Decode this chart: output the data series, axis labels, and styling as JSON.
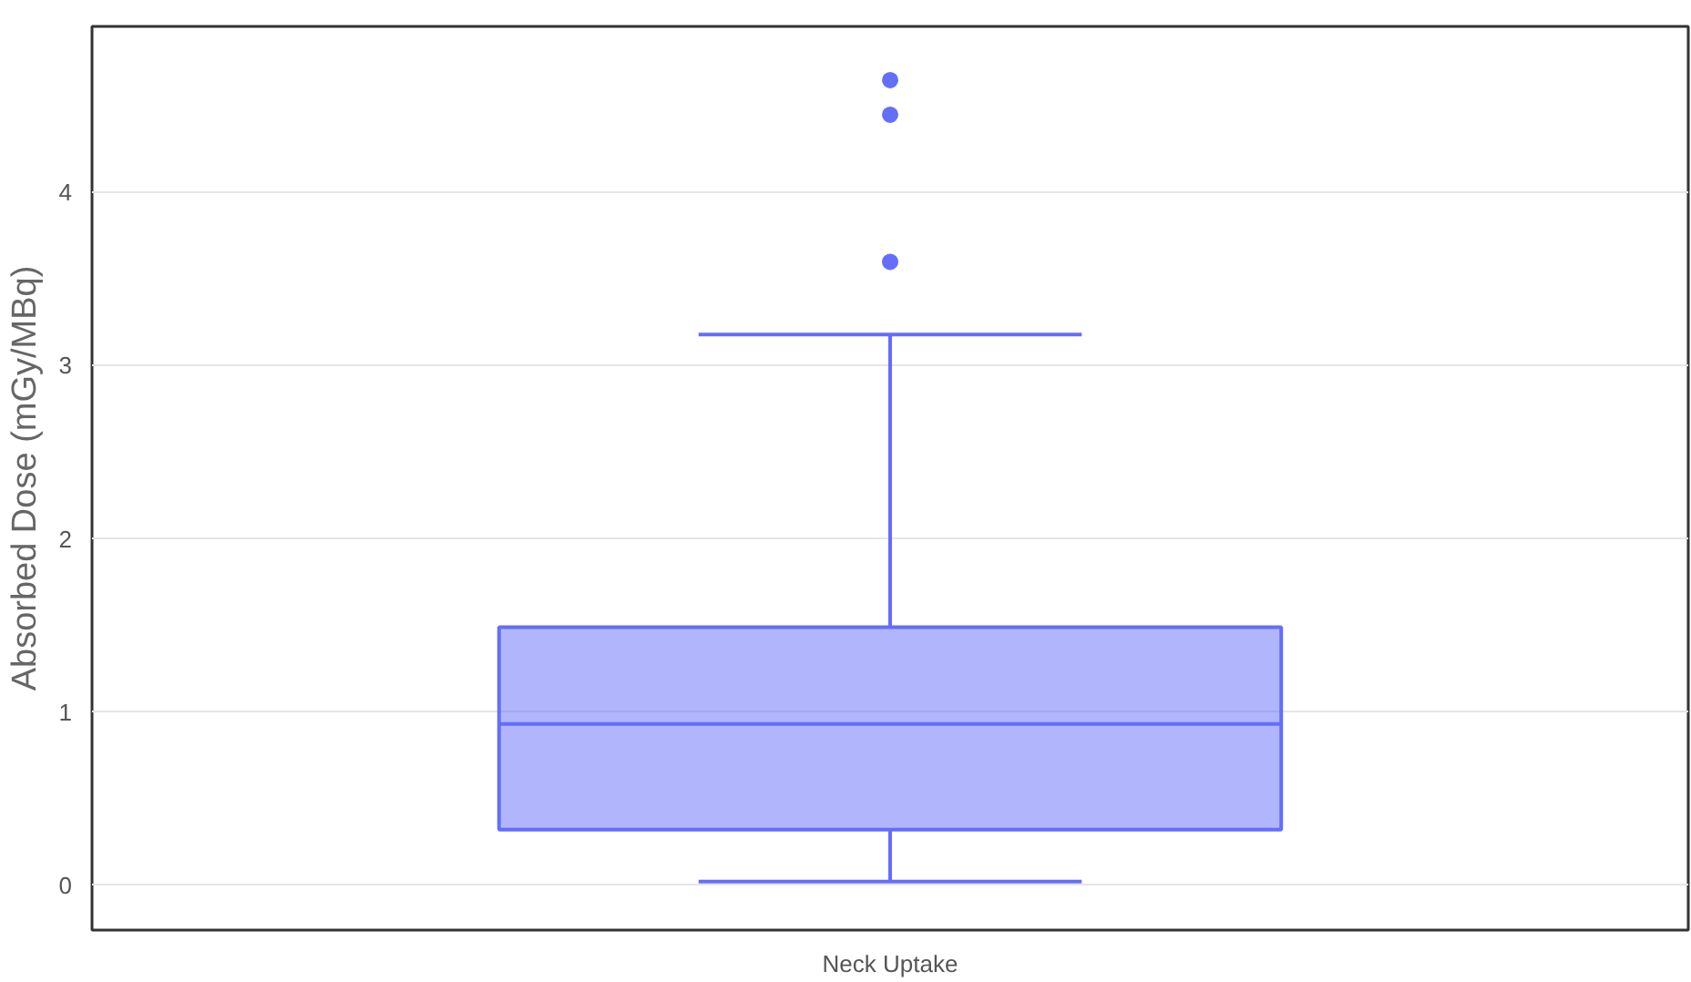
{
  "chart_data": {
    "type": "box",
    "ylabel": "Absorbed Dose (mGy/MBq)",
    "categories": [
      "Neck Uptake"
    ],
    "series": [
      {
        "color": "#636efa",
        "boxes": [
          {
            "low": 0.02,
            "q1": 0.32,
            "median": 0.93,
            "q3": 1.49,
            "high": 3.18,
            "outliers": [
              3.6,
              4.45,
              4.65
            ]
          }
        ]
      }
    ],
    "ylim": [
      -0.26,
      4.96
    ],
    "yticks": [
      0,
      1,
      2,
      3,
      4
    ],
    "grid": "y"
  }
}
